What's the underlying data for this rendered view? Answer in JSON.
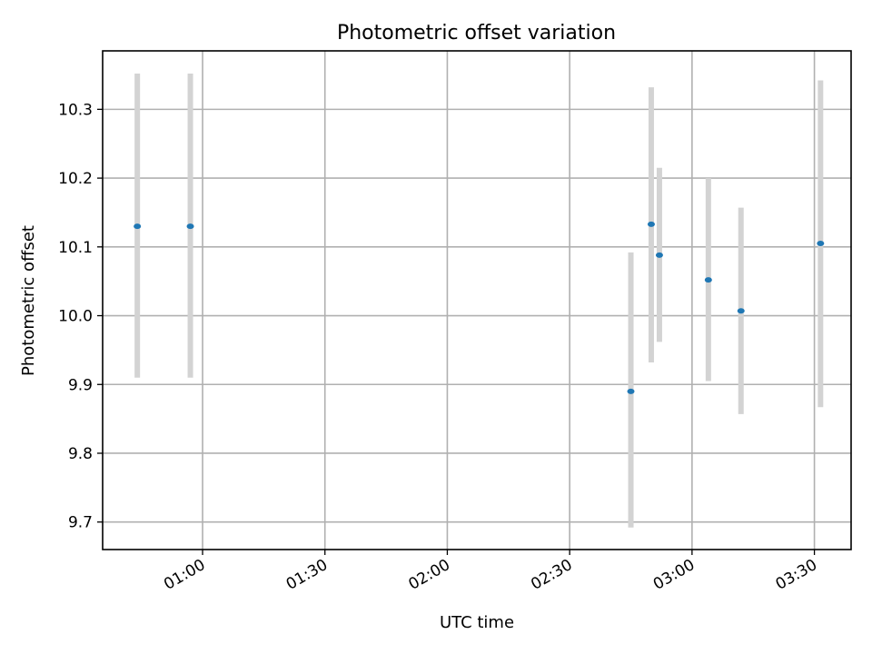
{
  "chart_data": {
    "type": "scatter",
    "title": "Photometric offset variation",
    "xlabel": "UTC time",
    "ylabel": "Photometric offset",
    "x_is_time": true,
    "xlim": [
      "00:35:30",
      "03:39:00"
    ],
    "ylim": [
      9.66,
      10.385
    ],
    "x_ticks": [
      "01:00",
      "01:30",
      "02:00",
      "02:30",
      "03:00",
      "03:30"
    ],
    "y_ticks": [
      9.7,
      9.8,
      9.9,
      10.0,
      10.1,
      10.2,
      10.3
    ],
    "y_tick_labels": [
      "9.7",
      "9.8",
      "9.9",
      "10.0",
      "10.1",
      "10.2",
      "10.3"
    ],
    "grid": true,
    "series": [
      {
        "points": [
          {
            "x": "00:44:00",
            "y": 10.13,
            "yerr_low": 9.91,
            "yerr_high": 10.352
          },
          {
            "x": "00:57:00",
            "y": 10.13,
            "yerr_low": 9.91,
            "yerr_high": 10.352
          },
          {
            "x": "02:45:00",
            "y": 9.89,
            "yerr_low": 9.692,
            "yerr_high": 10.092
          },
          {
            "x": "02:50:00",
            "y": 10.133,
            "yerr_low": 9.932,
            "yerr_high": 10.332
          },
          {
            "x": "02:52:00",
            "y": 10.088,
            "yerr_low": 9.962,
            "yerr_high": 10.215
          },
          {
            "x": "03:04:00",
            "y": 10.052,
            "yerr_low": 9.905,
            "yerr_high": 10.2
          },
          {
            "x": "03:12:00",
            "y": 10.007,
            "yerr_low": 9.857,
            "yerr_high": 10.157
          },
          {
            "x": "03:31:30",
            "y": 10.105,
            "yerr_low": 9.867,
            "yerr_high": 10.342
          }
        ]
      }
    ],
    "colors": {
      "marker": "#1f77b4",
      "errorbar": "#d3d3d3",
      "grid": "#b0b0b0",
      "axes": "#000000"
    }
  }
}
